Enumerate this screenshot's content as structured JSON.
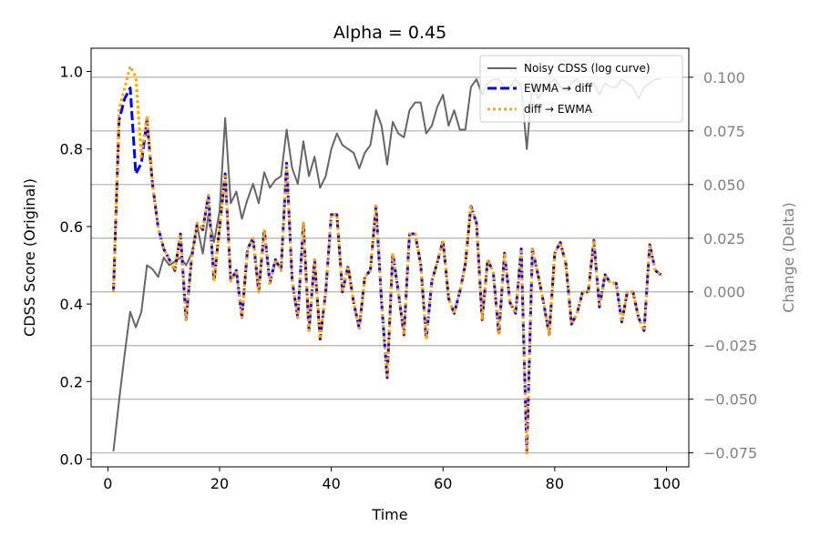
{
  "chart_data": {
    "type": "line",
    "title": "Alpha = 0.45",
    "xlabel": "Time",
    "ylabel_left": "CDSS Score (Original)",
    "ylabel_right": "Change (Delta)",
    "xlim": [
      -3,
      104
    ],
    "xticks": [
      0,
      20,
      40,
      60,
      80,
      100
    ],
    "ylim_left": [
      -0.02,
      1.06
    ],
    "yticks_left": [
      0.0,
      0.2,
      0.4,
      0.6,
      0.8,
      1.0
    ],
    "ylim_right": [
      -0.0815,
      0.1135
    ],
    "yticks_right": [
      -0.075,
      -0.05,
      -0.025,
      0.0,
      0.025,
      0.05,
      0.075,
      0.1
    ],
    "yticks_right_labels": [
      "−0.075",
      "−0.050",
      "−0.025",
      "0.000",
      "0.025",
      "0.050",
      "0.075",
      "0.100"
    ],
    "grid": "horizontal lines at right-axis ticks",
    "legend_position": "top-right",
    "colors": {
      "noisy": "#666666",
      "ewma_diff": "#0000ff",
      "diff_ewma": "#ffa500",
      "right_axis": "#808080",
      "grid": "#b0b0b0"
    },
    "series": [
      {
        "name": "Noisy CDSS (log curve)",
        "axis": "left",
        "style": "solid",
        "x": [
          1,
          2,
          3,
          4,
          5,
          6,
          7,
          8,
          9,
          10,
          11,
          12,
          13,
          14,
          15,
          16,
          17,
          18,
          19,
          20,
          21,
          22,
          23,
          24,
          25,
          26,
          27,
          28,
          29,
          30,
          31,
          32,
          33,
          34,
          35,
          36,
          37,
          38,
          39,
          40,
          41,
          42,
          43,
          44,
          45,
          46,
          47,
          48,
          49,
          50,
          51,
          52,
          53,
          54,
          55,
          56,
          57,
          58,
          59,
          60,
          61,
          62,
          63,
          64,
          65,
          66,
          67,
          68,
          69,
          70,
          71,
          72,
          73,
          74,
          75,
          76,
          77,
          78,
          79,
          80,
          81,
          82,
          83,
          84,
          85,
          86,
          87,
          88,
          89,
          90,
          91,
          92,
          93,
          94,
          95,
          96,
          97,
          98,
          99
        ],
        "values": [
          0.02,
          0.15,
          0.27,
          0.38,
          0.34,
          0.38,
          0.5,
          0.49,
          0.47,
          0.52,
          0.5,
          0.51,
          0.52,
          0.5,
          0.53,
          0.6,
          0.53,
          0.63,
          0.56,
          0.64,
          0.88,
          0.66,
          0.69,
          0.62,
          0.67,
          0.71,
          0.66,
          0.74,
          0.7,
          0.72,
          0.73,
          0.85,
          0.75,
          0.71,
          0.82,
          0.73,
          0.78,
          0.7,
          0.73,
          0.8,
          0.84,
          0.81,
          0.8,
          0.79,
          0.75,
          0.79,
          0.81,
          0.9,
          0.86,
          0.76,
          0.87,
          0.84,
          0.83,
          0.9,
          0.92,
          0.92,
          0.84,
          0.86,
          0.91,
          0.94,
          0.86,
          0.9,
          0.85,
          0.85,
          0.96,
          0.98,
          0.94,
          0.97,
          0.98,
          0.98,
          0.96,
          0.96,
          0.98,
          0.96,
          0.8,
          0.97,
          0.93,
          0.95,
          0.97,
          0.98,
          0.96,
          0.95,
          0.97,
          0.98,
          0.96,
          0.97,
          0.97,
          0.94,
          0.97,
          0.96,
          0.96,
          0.98,
          0.97,
          0.96,
          0.93,
          0.96,
          0.97,
          0.98,
          0.98
        ]
      },
      {
        "name": "EWMA → diff",
        "axis": "right",
        "style": "dashed",
        "x": [
          1,
          2,
          3,
          4,
          5,
          6,
          7,
          8,
          9,
          10,
          11,
          12,
          13,
          14,
          15,
          16,
          17,
          18,
          19,
          20,
          21,
          22,
          23,
          24,
          25,
          26,
          27,
          28,
          29,
          30,
          31,
          32,
          33,
          34,
          35,
          36,
          37,
          38,
          39,
          40,
          41,
          42,
          43,
          44,
          45,
          46,
          47,
          48,
          49,
          50,
          51,
          52,
          53,
          54,
          55,
          56,
          57,
          58,
          59,
          60,
          61,
          62,
          63,
          64,
          65,
          66,
          67,
          68,
          69,
          70,
          71,
          72,
          73,
          74,
          75,
          76,
          77,
          78,
          79,
          80,
          81,
          82,
          83,
          84,
          85,
          86,
          87,
          88,
          89,
          90,
          91,
          92,
          93,
          94,
          95,
          96,
          97,
          98,
          99
        ],
        "values": [
          0.0,
          0.08,
          0.09,
          0.095,
          0.055,
          0.06,
          0.08,
          0.05,
          0.03,
          0.02,
          0.015,
          0.01,
          0.027,
          -0.013,
          0.016,
          0.032,
          0.029,
          0.045,
          0.005,
          0.03,
          0.055,
          0.005,
          0.01,
          -0.012,
          0.02,
          0.025,
          0.0,
          0.029,
          0.004,
          0.015,
          0.01,
          0.06,
          0.005,
          -0.012,
          0.032,
          -0.018,
          0.015,
          -0.022,
          0.0,
          0.036,
          0.036,
          0.0,
          0.012,
          -0.005,
          -0.017,
          0.007,
          0.01,
          0.04,
          -0.005,
          -0.04,
          0.018,
          0.0,
          -0.02,
          0.027,
          0.027,
          0.013,
          -0.022,
          0.005,
          0.014,
          0.024,
          -0.003,
          -0.01,
          0.0,
          0.013,
          0.04,
          0.032,
          -0.013,
          0.015,
          0.009,
          -0.02,
          0.018,
          -0.005,
          -0.01,
          0.02,
          -0.075,
          0.02,
          0.008,
          -0.005,
          -0.02,
          0.018,
          0.023,
          0.013,
          -0.015,
          -0.01,
          0.0,
          0.0,
          0.024,
          -0.007,
          0.008,
          0.004,
          0.004,
          -0.014,
          0.0,
          0.0,
          -0.012,
          -0.018,
          0.022,
          0.01,
          0.008
        ]
      },
      {
        "name": "diff → EWMA",
        "axis": "right",
        "style": "dotted",
        "x": [
          1,
          2,
          3,
          4,
          5,
          6,
          7,
          8,
          9,
          10,
          11,
          12,
          13,
          14,
          15,
          16,
          17,
          18,
          19,
          20,
          21,
          22,
          23,
          24,
          25,
          26,
          27,
          28,
          29,
          30,
          31,
          32,
          33,
          34,
          35,
          36,
          37,
          38,
          39,
          40,
          41,
          42,
          43,
          44,
          45,
          46,
          47,
          48,
          49,
          50,
          51,
          52,
          53,
          54,
          55,
          56,
          57,
          58,
          59,
          60,
          61,
          62,
          63,
          64,
          65,
          66,
          67,
          68,
          69,
          70,
          71,
          72,
          73,
          74,
          75,
          76,
          77,
          78,
          79,
          80,
          81,
          82,
          83,
          84,
          85,
          86,
          87,
          88,
          89,
          90,
          91,
          92,
          93,
          94,
          95,
          96,
          97,
          98,
          99
        ],
        "values": [
          0.0,
          0.085,
          0.095,
          0.105,
          0.1,
          0.063,
          0.082,
          0.05,
          0.03,
          0.02,
          0.015,
          0.01,
          0.027,
          -0.013,
          0.016,
          0.032,
          0.029,
          0.045,
          0.005,
          0.03,
          0.055,
          0.005,
          0.01,
          -0.012,
          0.02,
          0.025,
          0.0,
          0.029,
          0.004,
          0.015,
          0.01,
          0.06,
          0.005,
          -0.012,
          0.032,
          -0.018,
          0.015,
          -0.022,
          0.0,
          0.036,
          0.036,
          0.0,
          0.012,
          -0.005,
          -0.017,
          0.007,
          0.01,
          0.04,
          -0.005,
          -0.04,
          0.018,
          0.0,
          -0.02,
          0.027,
          0.027,
          0.013,
          -0.022,
          0.005,
          0.014,
          0.024,
          -0.003,
          -0.01,
          0.0,
          0.013,
          0.04,
          0.032,
          -0.013,
          0.015,
          0.009,
          -0.02,
          0.018,
          -0.005,
          -0.01,
          0.02,
          -0.075,
          0.02,
          0.008,
          -0.005,
          -0.02,
          0.018,
          0.023,
          0.013,
          -0.015,
          -0.01,
          0.0,
          0.0,
          0.024,
          -0.007,
          0.008,
          0.004,
          0.004,
          -0.014,
          0.0,
          0.0,
          -0.012,
          -0.018,
          0.022,
          0.01,
          0.008
        ]
      }
    ]
  }
}
